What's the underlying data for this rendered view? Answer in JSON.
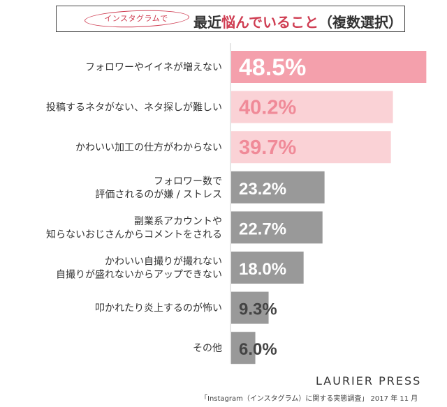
{
  "title": {
    "oval_text": "インスタグラムで",
    "main_prefix": "最近",
    "main_highlight": "悩んでいること",
    "main_suffix": "（複数選択）"
  },
  "chart_data": {
    "type": "bar",
    "orientation": "horizontal",
    "categories": [
      [
        "フォロワーやイイネが増えない"
      ],
      [
        "投稿するネタがない、ネタ探しが難しい"
      ],
      [
        "かわいい加工の仕方がわからない"
      ],
      [
        "フォロワー数で",
        "評価されるのが嫌 / ストレス"
      ],
      [
        "副業系アカウントや",
        "知らないおじさんからコメントをされる"
      ],
      [
        "かわいい自撮りが撮れない",
        "自撮りが盛れないからアップできない"
      ],
      [
        "叩かれたり炎上するのが怖い"
      ],
      [
        "その他"
      ]
    ],
    "values": [
      48.5,
      40.2,
      39.7,
      23.2,
      22.7,
      18.0,
      9.3,
      6.0
    ],
    "value_labels": [
      "48.5%",
      "40.2%",
      "39.7%",
      "23.2%",
      "22.7%",
      "18.0%",
      "9.3%",
      "6.0%"
    ],
    "colors": [
      "#f4a0ac",
      "#fad2d6",
      "#fad2d6",
      "#999999",
      "#999999",
      "#999999",
      "#999999",
      "#999999"
    ],
    "label_colors": [
      "#ffffff",
      "#f08a98",
      "#f08a98",
      "#ffffff",
      "#ffffff",
      "#ffffff",
      "#444444",
      "#444444"
    ],
    "xlim": [
      0,
      50
    ],
    "grid": false,
    "legend": "none"
  },
  "footer": {
    "brand": "LAURIER PRESS",
    "source": "「Instagram（インスタグラム）に関する実態調査」 2017 年 11 月"
  }
}
